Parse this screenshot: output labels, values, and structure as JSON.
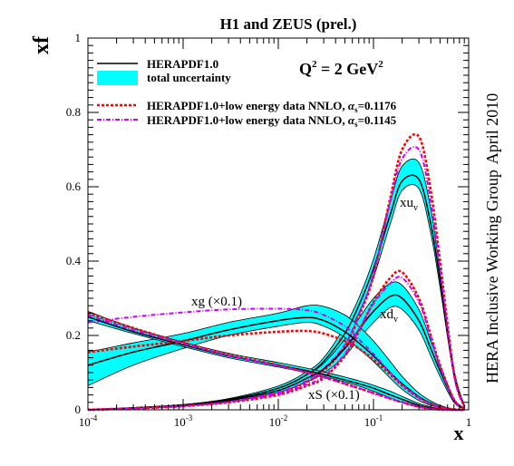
{
  "chart_data": {
    "type": "line",
    "title": "H1 and ZEUS (prel.)",
    "ylabel": "xf",
    "xlabel": "x",
    "x_scale": "log",
    "xlim": [
      0.0001,
      1
    ],
    "ylim": [
      0,
      1
    ],
    "x_ticks": [
      {
        "value": 0.0001,
        "base": "10",
        "exp": "-4"
      },
      {
        "value": 0.001,
        "base": "10",
        "exp": "-3"
      },
      {
        "value": 0.01,
        "base": "10",
        "exp": "-2"
      },
      {
        "value": 0.1,
        "base": "10",
        "exp": "-1"
      },
      {
        "value": 1,
        "base": "1",
        "exp": ""
      }
    ],
    "y_ticks": [
      0,
      0.2,
      0.4,
      0.6,
      0.8,
      1
    ],
    "y_tick_labels": [
      "0",
      "0.2",
      "0.4",
      "0.6",
      "0.8",
      "1"
    ],
    "q2_label": "Q",
    "q2_sup": "2",
    "q2_value": " = 2 GeV",
    "q2_unit_sup": "2",
    "side_text_1": "April 2010",
    "side_text_2": "HERA Inclusive Working Group",
    "legend": {
      "placement": "top-left",
      "entries": [
        {
          "key": "herapdf",
          "label": "HERAPDF1.0"
        },
        {
          "key": "unc",
          "label": "total uncertainty"
        },
        {
          "key": "nnlo1",
          "label": "HERAPDF1.0+low energy data NNLO, ",
          "alpha": "α",
          "alpha_sub": "s",
          "alpha_val": "=0.1176"
        },
        {
          "key": "nnlo2",
          "label": "HERAPDF1.0+low energy data NNLO, ",
          "alpha": "α",
          "alpha_sub": "s",
          "alpha_val": "=0.1145"
        }
      ]
    },
    "annotations": {
      "xuv": {
        "main": "xu",
        "sub": "v"
      },
      "xdv": {
        "main": "xd",
        "sub": "v"
      },
      "xg": {
        "main": "xg (×0.1)"
      },
      "xs": {
        "main": "xS (×0.1)"
      }
    },
    "colors": {
      "band": "#00ffff",
      "central": "#000000",
      "nnlo1": "#ff0000",
      "nnlo2": "#cc00ff"
    },
    "x": [
      0.0001,
      0.0003,
      0.001,
      0.003,
      0.01,
      0.02,
      0.03,
      0.05,
      0.07,
      0.1,
      0.15,
      0.2,
      0.3,
      0.4,
      0.5,
      0.7,
      0.9
    ],
    "series": [
      {
        "key": "xuv",
        "band": true,
        "central": [
          0.0,
          0.005,
          0.012,
          0.027,
          0.058,
          0.095,
          0.13,
          0.205,
          0.28,
          0.38,
          0.525,
          0.615,
          0.62,
          0.5,
          0.35,
          0.1,
          0.01
        ],
        "low": [
          0.0,
          0.004,
          0.01,
          0.024,
          0.053,
          0.088,
          0.12,
          0.19,
          0.26,
          0.355,
          0.5,
          0.59,
          0.595,
          0.475,
          0.33,
          0.09,
          0.008
        ],
        "high": [
          0.0,
          0.006,
          0.014,
          0.03,
          0.064,
          0.103,
          0.14,
          0.225,
          0.3,
          0.405,
          0.56,
          0.655,
          0.665,
          0.54,
          0.37,
          0.11,
          0.012
        ],
        "nnlo1": [
          0.0,
          0.004,
          0.01,
          0.022,
          0.045,
          0.075,
          0.105,
          0.17,
          0.25,
          0.36,
          0.57,
          0.7,
          0.735,
          0.59,
          0.4,
          0.1,
          0.008
        ],
        "nnlo2": [
          0.0,
          0.004,
          0.01,
          0.023,
          0.047,
          0.078,
          0.11,
          0.175,
          0.255,
          0.365,
          0.56,
          0.675,
          0.7,
          0.56,
          0.38,
          0.095,
          0.008
        ]
      },
      {
        "key": "xdv",
        "band": true,
        "central": [
          0.0,
          0.005,
          0.012,
          0.025,
          0.052,
          0.085,
          0.11,
          0.165,
          0.215,
          0.265,
          0.305,
          0.3,
          0.24,
          0.165,
          0.105,
          0.025,
          0.003
        ],
        "low": [
          0.0,
          0.004,
          0.01,
          0.021,
          0.046,
          0.075,
          0.098,
          0.145,
          0.19,
          0.235,
          0.275,
          0.27,
          0.215,
          0.145,
          0.09,
          0.02,
          0.002
        ],
        "high": [
          0.0,
          0.006,
          0.014,
          0.029,
          0.058,
          0.095,
          0.125,
          0.19,
          0.245,
          0.3,
          0.34,
          0.335,
          0.27,
          0.185,
          0.12,
          0.03,
          0.004
        ],
        "nnlo1": [
          0.0,
          0.004,
          0.01,
          0.02,
          0.04,
          0.065,
          0.085,
          0.145,
          0.21,
          0.29,
          0.355,
          0.37,
          0.3,
          0.2,
          0.12,
          0.028,
          0.003
        ],
        "nnlo2": [
          0.0,
          0.004,
          0.01,
          0.021,
          0.042,
          0.068,
          0.09,
          0.15,
          0.215,
          0.285,
          0.34,
          0.355,
          0.29,
          0.195,
          0.115,
          0.027,
          0.003
        ]
      },
      {
        "key": "xg",
        "band": true,
        "central": [
          0.12,
          0.155,
          0.185,
          0.215,
          0.24,
          0.248,
          0.24,
          0.21,
          0.18,
          0.145,
          0.1,
          0.07,
          0.035,
          0.018,
          0.008,
          0.001,
          0.0
        ],
        "low": [
          0.065,
          0.12,
          0.165,
          0.2,
          0.225,
          0.235,
          0.225,
          0.195,
          0.165,
          0.13,
          0.085,
          0.055,
          0.025,
          0.012,
          0.005,
          0.0,
          0.0
        ],
        "high": [
          0.155,
          0.18,
          0.205,
          0.235,
          0.26,
          0.28,
          0.278,
          0.255,
          0.225,
          0.185,
          0.13,
          0.09,
          0.045,
          0.024,
          0.012,
          0.002,
          0.0
        ],
        "nnlo1": [
          0.155,
          0.17,
          0.185,
          0.2,
          0.21,
          0.212,
          0.205,
          0.185,
          0.165,
          0.135,
          0.095,
          0.065,
          0.032,
          0.016,
          0.007,
          0.001,
          0.0
        ],
        "nnlo2": [
          0.235,
          0.25,
          0.262,
          0.27,
          0.272,
          0.268,
          0.255,
          0.225,
          0.19,
          0.15,
          0.1,
          0.068,
          0.033,
          0.016,
          0.007,
          0.001,
          0.0
        ]
      },
      {
        "key": "xs",
        "band": true,
        "central": [
          0.25,
          0.21,
          0.175,
          0.145,
          0.12,
          0.105,
          0.095,
          0.08,
          0.07,
          0.058,
          0.04,
          0.028,
          0.012,
          0.005,
          0.002,
          0.0,
          0.0
        ],
        "low": [
          0.24,
          0.205,
          0.17,
          0.14,
          0.115,
          0.1,
          0.09,
          0.075,
          0.064,
          0.05,
          0.032,
          0.02,
          0.008,
          0.003,
          0.001,
          0.0,
          0.0
        ],
        "high": [
          0.265,
          0.22,
          0.182,
          0.152,
          0.127,
          0.112,
          0.102,
          0.088,
          0.078,
          0.066,
          0.05,
          0.036,
          0.017,
          0.008,
          0.003,
          0.0,
          0.0
        ],
        "nnlo1": [
          0.26,
          0.22,
          0.18,
          0.148,
          0.12,
          0.1,
          0.088,
          0.07,
          0.058,
          0.045,
          0.03,
          0.02,
          0.008,
          0.003,
          0.001,
          0.0,
          0.0
        ],
        "nnlo2": [
          0.255,
          0.215,
          0.178,
          0.146,
          0.118,
          0.1,
          0.088,
          0.07,
          0.058,
          0.045,
          0.03,
          0.02,
          0.008,
          0.003,
          0.001,
          0.0,
          0.0
        ]
      }
    ]
  }
}
